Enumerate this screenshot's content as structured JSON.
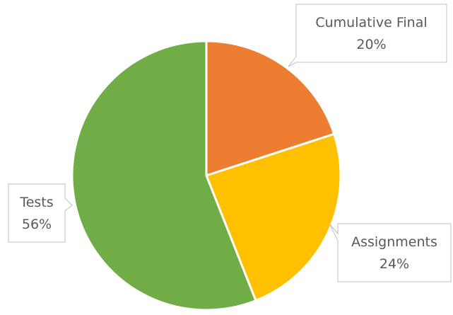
{
  "chart_data": {
    "type": "pie",
    "title": "",
    "slices": [
      {
        "label": "Cumulative Final",
        "value": 20,
        "value_label": "20%",
        "color": "#ED7D31"
      },
      {
        "label": "Assignments",
        "value": 24,
        "value_label": "24%",
        "color": "#FFC000"
      },
      {
        "label": "Tests",
        "value": 56,
        "value_label": "56%",
        "color": "#70AD47"
      }
    ],
    "start_angle_deg": 0,
    "direction": "clockwise",
    "legend": "none",
    "data_label_style": "callout"
  }
}
